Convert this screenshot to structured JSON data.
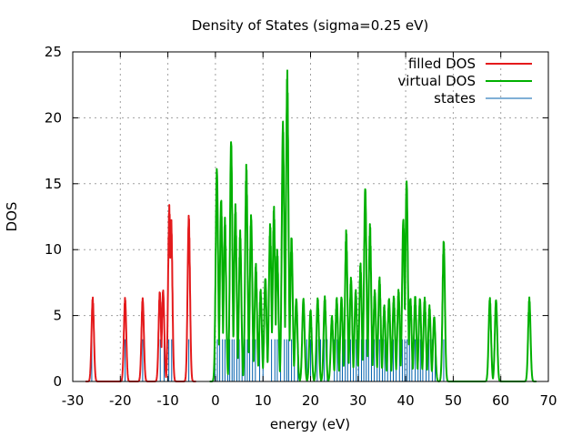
{
  "chart_data": {
    "type": "line",
    "title": "Density of States (sigma=0.25 eV)",
    "xlabel": "energy (eV)",
    "ylabel": "DOS",
    "xlim": [
      -30,
      70
    ],
    "ylim": [
      0,
      25
    ],
    "xticks": [
      -30,
      -20,
      -10,
      0,
      10,
      20,
      30,
      40,
      50,
      60,
      70
    ],
    "yticks": [
      0,
      5,
      10,
      15,
      20,
      25
    ],
    "grid": true,
    "legend_position": "top-right",
    "series": [
      {
        "name": "filled DOS",
        "color": "#e41a1c",
        "style": "line",
        "peaks": [
          [
            -25.8,
            6.4
          ],
          [
            -19.0,
            6.4
          ],
          [
            -15.3,
            6.4
          ],
          [
            -11.7,
            6.9
          ],
          [
            -11.0,
            7.0
          ],
          [
            -9.7,
            13.4
          ],
          [
            -9.3,
            12.5
          ],
          [
            -5.6,
            12.7
          ]
        ]
      },
      {
        "name": "virtual DOS",
        "color": "#00b000",
        "style": "line",
        "peaks": [
          [
            0.3,
            16.4
          ],
          [
            1.2,
            14.0
          ],
          [
            2.0,
            12.5
          ],
          [
            3.3,
            18.6
          ],
          [
            4.2,
            13.5
          ],
          [
            5.2,
            11.5
          ],
          [
            6.5,
            16.5
          ],
          [
            7.5,
            12.8
          ],
          [
            8.5,
            9.0
          ],
          [
            9.5,
            7.0
          ],
          [
            10.5,
            8.0
          ],
          [
            11.5,
            12.0
          ],
          [
            12.3,
            13.3
          ],
          [
            13.0,
            10.0
          ],
          [
            14.2,
            20.0
          ],
          [
            15.1,
            23.7
          ],
          [
            16.0,
            11.0
          ],
          [
            17.0,
            6.4
          ],
          [
            18.5,
            6.4
          ],
          [
            20.0,
            5.5
          ],
          [
            21.5,
            6.4
          ],
          [
            23.0,
            6.5
          ],
          [
            24.5,
            5.0
          ],
          [
            25.5,
            6.4
          ],
          [
            26.5,
            6.5
          ],
          [
            27.5,
            11.5
          ],
          [
            28.5,
            8.0
          ],
          [
            29.5,
            7.0
          ],
          [
            30.5,
            9.0
          ],
          [
            31.5,
            15.0
          ],
          [
            32.5,
            12.0
          ],
          [
            33.5,
            7.0
          ],
          [
            34.5,
            8.0
          ],
          [
            35.5,
            5.8
          ],
          [
            36.5,
            6.4
          ],
          [
            37.5,
            6.5
          ],
          [
            38.5,
            7.0
          ],
          [
            39.5,
            12.5
          ],
          [
            40.2,
            15.5
          ],
          [
            41.0,
            6.4
          ],
          [
            42.0,
            6.5
          ],
          [
            43.0,
            6.4
          ],
          [
            44.0,
            6.4
          ],
          [
            45.0,
            5.8
          ],
          [
            46.0,
            5.0
          ],
          [
            48.0,
            10.8
          ],
          [
            57.7,
            6.4
          ],
          [
            59.0,
            6.3
          ],
          [
            66.0,
            6.4
          ]
        ]
      },
      {
        "name": "states",
        "color": "#0060ad",
        "style": "impulses",
        "height": 3.2,
        "x": [
          -26.0,
          -19.0,
          -15.3,
          -11.6,
          -10.8,
          -9.8,
          -9.2,
          -5.6,
          -0.1,
          0.4,
          0.9,
          1.5,
          2.0,
          2.6,
          3.0,
          3.5,
          3.9,
          4.5,
          5.0,
          5.6,
          6.2,
          6.7,
          7.2,
          7.8,
          8.4,
          9.3,
          10.0,
          11.8,
          12.5,
          13.0,
          13.7,
          14.5,
          15.0,
          15.4,
          16.0,
          16.6,
          17.3,
          19.2,
          20.0,
          21.4,
          22.1,
          22.9,
          23.5,
          25.0,
          25.6,
          26.2,
          26.7,
          27.3,
          27.8,
          28.4,
          29.0,
          29.6,
          30.1,
          30.7,
          31.2,
          31.7,
          32.2,
          32.8,
          33.4,
          34.0,
          34.5,
          35.1,
          35.6,
          36.2,
          36.8,
          37.4,
          38.0,
          38.7,
          39.3,
          39.8,
          40.3,
          40.8,
          41.3,
          42.0,
          42.6,
          43.1,
          43.6,
          44.3,
          44.9,
          45.6,
          46.2,
          48.0
        ]
      }
    ]
  }
}
